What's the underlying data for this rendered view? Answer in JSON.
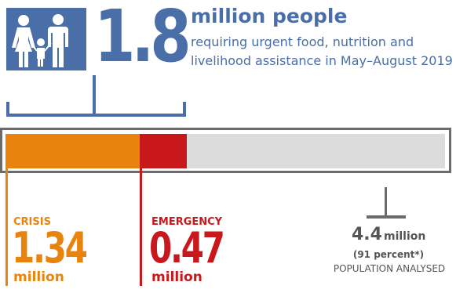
{
  "icon": "family-icon",
  "colors": {
    "brand_blue": "#4a6ea8",
    "crisis": "#e8830d",
    "emergency": "#c8181c",
    "remainder": "#dcdcdc",
    "frame": "#6b6b6b",
    "text_gray": "#555555"
  },
  "headline": {
    "number": "1.8",
    "unit": "million people",
    "line1": "requiring urgent food, nutrition and",
    "line2": "livelihood assistance in May–August 2019"
  },
  "chart_data": {
    "type": "bar",
    "orientation": "horizontal-stacked",
    "total": 4.4,
    "unit": "million",
    "series": [
      {
        "name": "CRISIS",
        "value": 1.34,
        "value_label": "1.34",
        "unit_label": "million"
      },
      {
        "name": "EMERGENCY",
        "value": 0.47,
        "value_label": "0.47",
        "unit_label": "million"
      }
    ],
    "population": {
      "value_label": "4.4",
      "unit_label": "million",
      "percent_label": "(91 percent*)",
      "label": "POPULATION ANALYSED"
    }
  }
}
